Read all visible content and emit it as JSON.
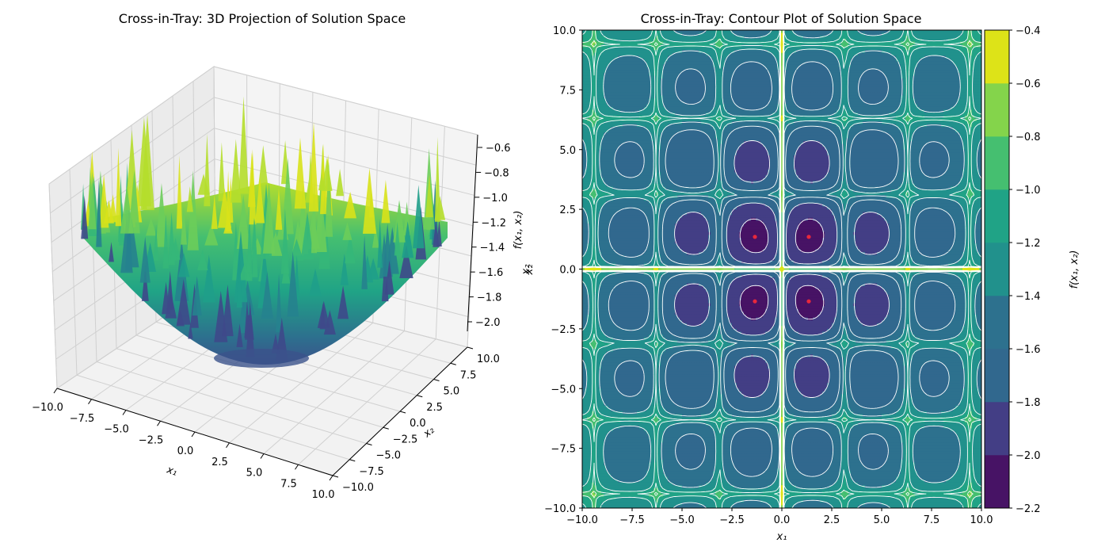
{
  "figure": {
    "background": "#ffffff"
  },
  "chart_data": [
    {
      "type": "surface",
      "title": "Cross-in-Tray: 3D Projection of Solution Space",
      "colormap": "viridis",
      "xlabel": "x₁",
      "ylabel": "x₂",
      "zlabel": "f(x₁, x₂)",
      "zlabel_extra": "x₂",
      "xlim": [
        -10,
        10
      ],
      "ylim": [
        -10,
        10
      ],
      "zlim": [
        -2.1,
        -0.55
      ],
      "x_ticks": [
        "−10.0",
        "−7.5",
        "−5.0",
        "−2.5",
        "0.0",
        "2.5",
        "5.0",
        "7.5",
        "10.0"
      ],
      "y_ticks": [
        "−10.0",
        "−7.5",
        "−5.0",
        "−2.5",
        "0.0",
        "2.5",
        "5.0",
        "7.5",
        "10.0"
      ],
      "z_ticks": [
        "−0.6",
        "−0.8",
        "−1.0",
        "−1.2",
        "−1.4",
        "−1.6",
        "−1.8",
        "−2.0"
      ],
      "grid": true
    },
    {
      "type": "heatmap",
      "title": "Cross-in-Tray: Contour Plot of Solution Space",
      "colormap": "viridis",
      "xlabel": "x₁",
      "ylabel": "x₂",
      "xlim": [
        -10,
        10
      ],
      "ylim": [
        -10,
        10
      ],
      "x_ticks": [
        "−10.0",
        "−7.5",
        "−5.0",
        "−2.5",
        "0.0",
        "2.5",
        "5.0",
        "7.5",
        "10.0"
      ],
      "y_ticks": [
        "−10.0",
        "−7.5",
        "−5.0",
        "−2.5",
        "0.0",
        "2.5",
        "5.0",
        "7.5",
        "10.0"
      ],
      "contour_lines": "dashed white",
      "colorbar": {
        "label": "f(x₁, x₂)",
        "levels": [
          -2.2,
          -2.0,
          -1.8,
          -1.6,
          -1.4,
          -1.2,
          -1.0,
          -0.8,
          -0.6,
          -0.4
        ],
        "tick_labels": [
          "−2.2",
          "−2.0",
          "−1.8",
          "−1.6",
          "−1.4",
          "−1.2",
          "−1.0",
          "−0.8",
          "−0.6",
          "−0.4"
        ],
        "colors": [
          "#471365",
          "#433e85",
          "#31688e",
          "#2d718e",
          "#21918c",
          "#20a386",
          "#45bf70",
          "#84d44b",
          "#dde318"
        ]
      },
      "global_minima": {
        "color": "#e8283c",
        "points": [
          [
            -1.349,
            1.349
          ],
          [
            1.349,
            1.349
          ],
          [
            -1.349,
            -1.349
          ],
          [
            1.349,
            -1.349
          ]
        ]
      }
    }
  ]
}
